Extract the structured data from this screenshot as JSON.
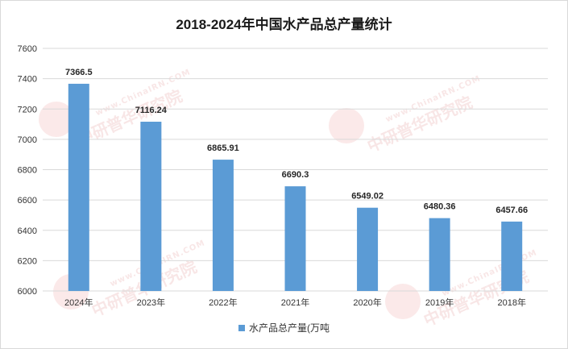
{
  "chart_data": {
    "type": "bar",
    "title": "2018-2024年中国水产品总产量统计",
    "categories": [
      "2024年",
      "2023年",
      "2022年",
      "2021年",
      "2020年",
      "2019年",
      "2018年"
    ],
    "series": [
      {
        "name": "水产品总产量(万吨",
        "values": [
          7366.5,
          7116.24,
          6865.91,
          6690.3,
          6549.02,
          6480.36,
          6457.66
        ]
      }
    ],
    "data_labels": [
      "7366.5",
      "7116.24",
      "6865.91",
      "6690.3",
      "6549.02",
      "6480.36",
      "6457.66"
    ],
    "ylim": [
      6000,
      7600
    ],
    "yticks": [
      6000,
      6200,
      6400,
      6600,
      6800,
      7000,
      7200,
      7400,
      7600
    ],
    "grid": true,
    "legend_position": "bottom",
    "bar_color": "#5b9bd5"
  },
  "watermark": {
    "text": "中研普华研究院",
    "sub": "www.ChinaIRN.COM",
    "logo": "CIRN"
  }
}
